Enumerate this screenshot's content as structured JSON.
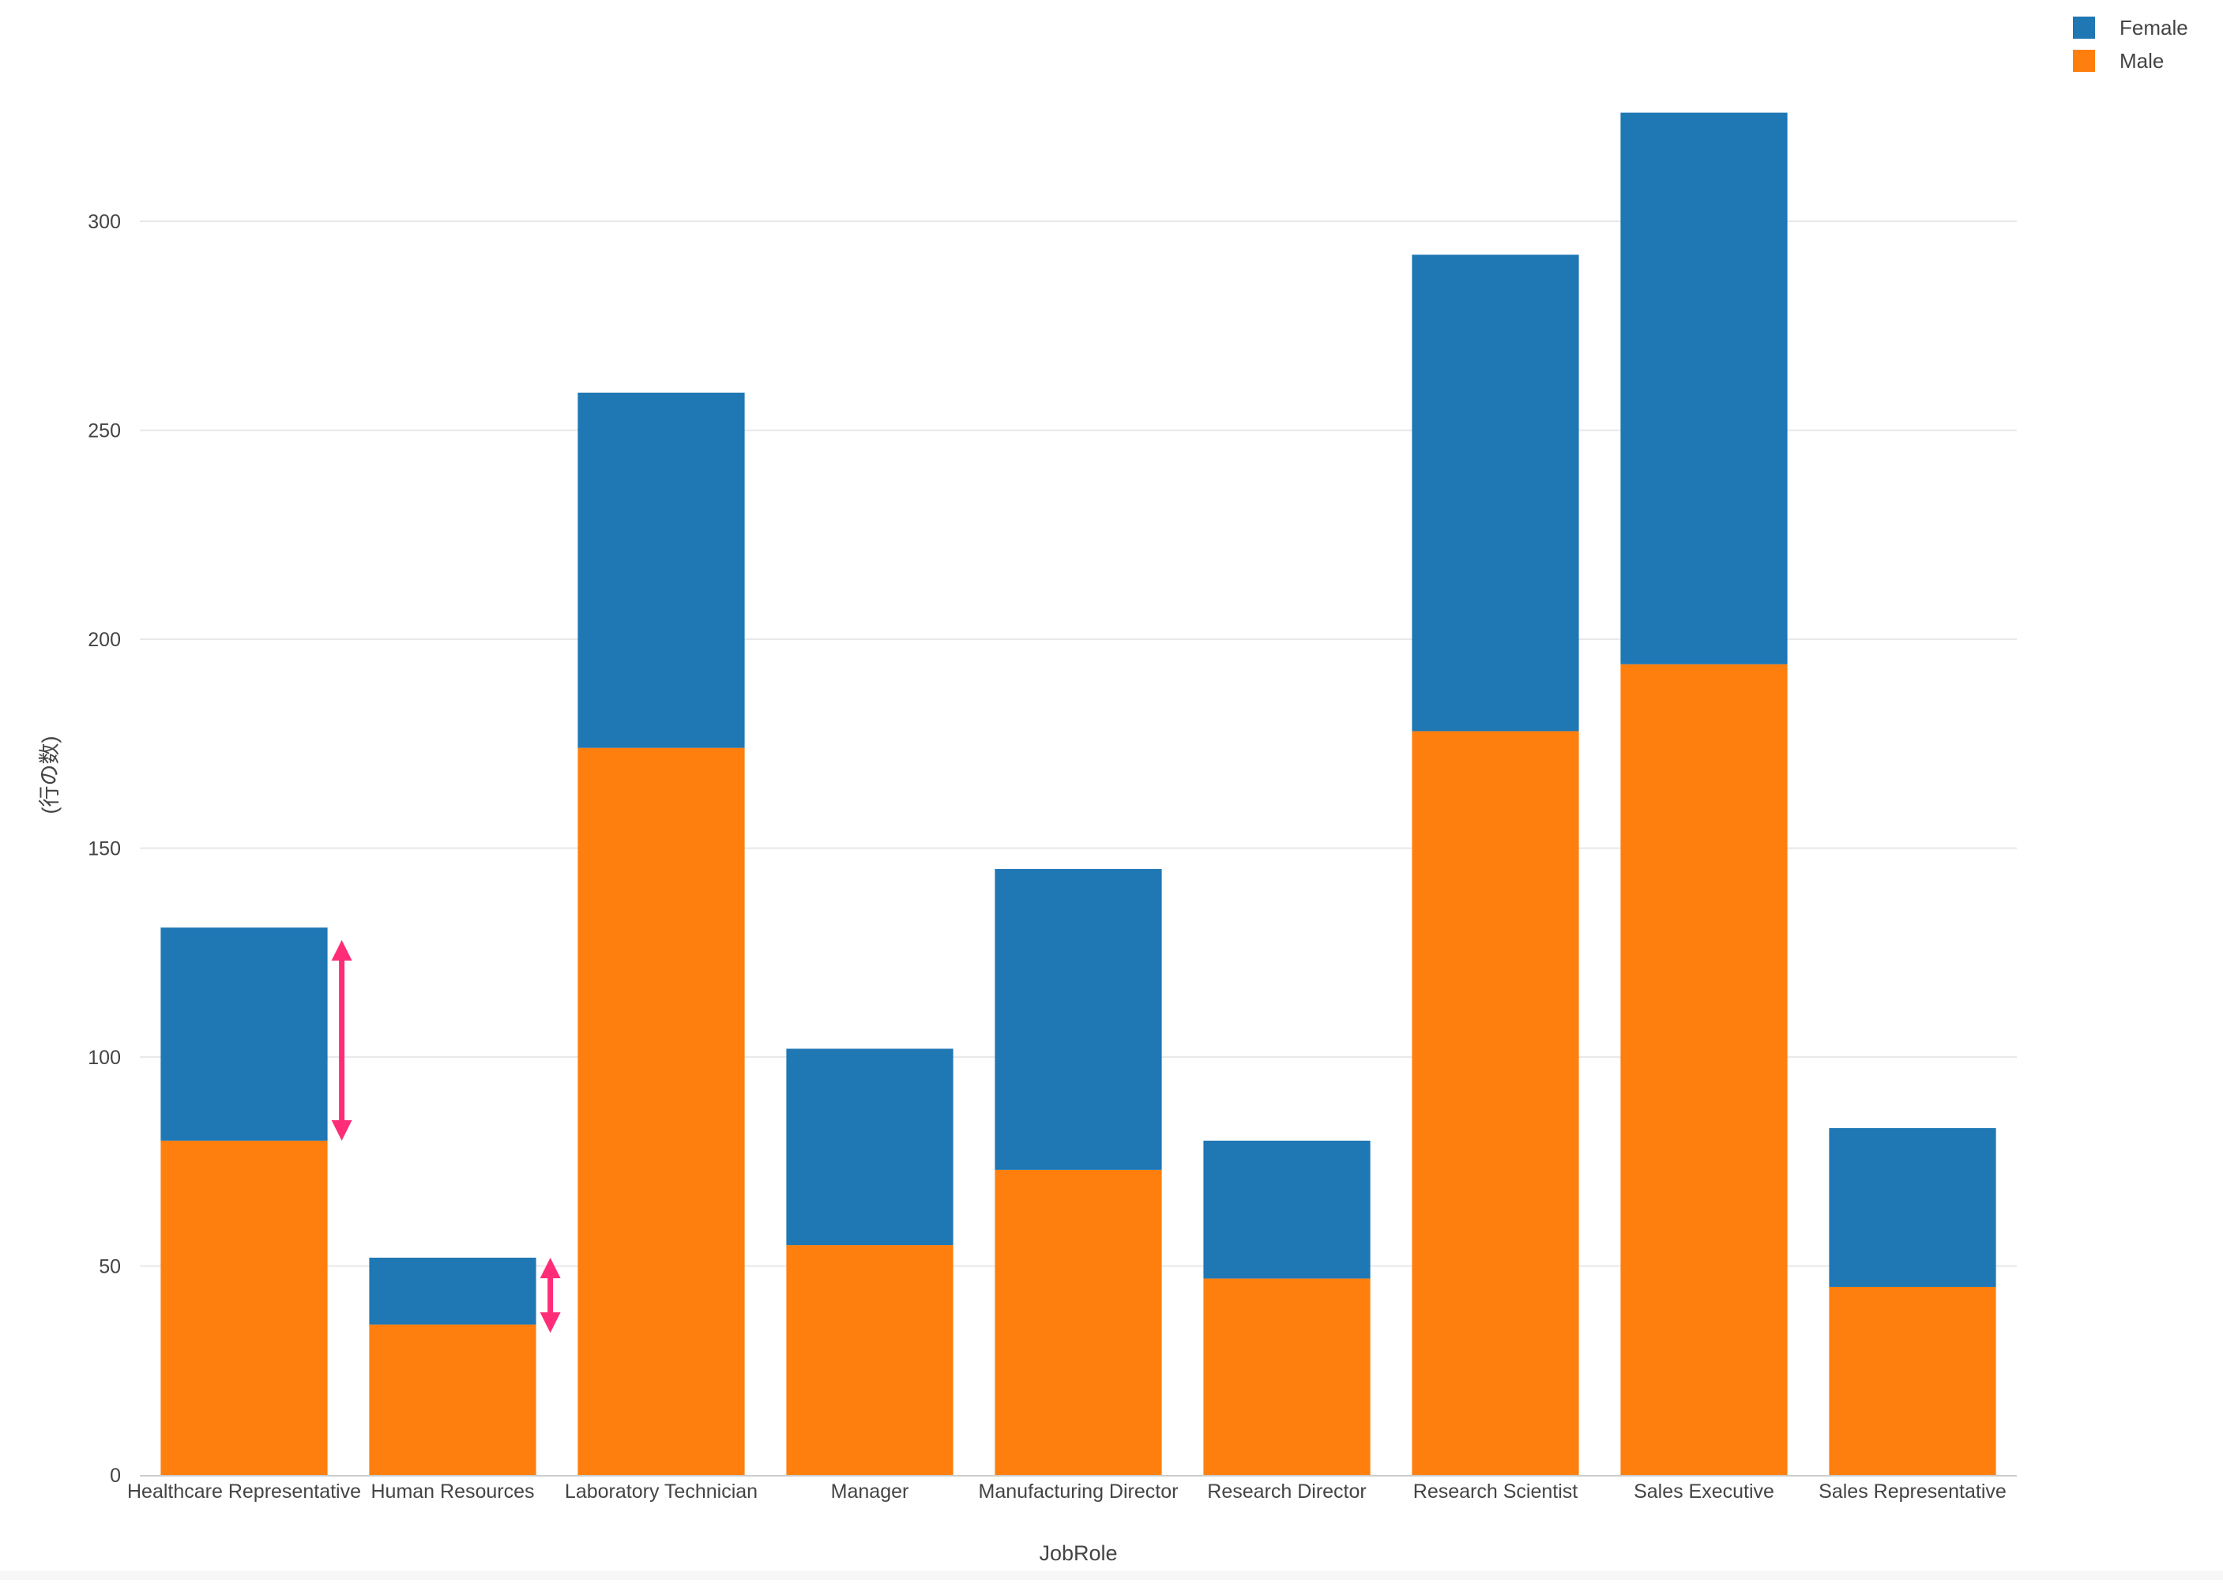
{
  "chart_data": {
    "type": "bar",
    "stacked": true,
    "categories": [
      "Healthcare Representative",
      "Human Resources",
      "Laboratory Technician",
      "Manager",
      "Manufacturing Director",
      "Research Director",
      "Research Scientist",
      "Sales Executive",
      "Sales Representative"
    ],
    "series": [
      {
        "name": "Male",
        "color": "#ff7f0e",
        "values": [
          80,
          36,
          174,
          55,
          73,
          47,
          178,
          194,
          45
        ]
      },
      {
        "name": "Female",
        "color": "#1f77b4",
        "values": [
          51,
          16,
          85,
          47,
          72,
          33,
          114,
          132,
          38
        ]
      }
    ],
    "legend_order": [
      "Female",
      "Male"
    ],
    "xlabel": "JobRole",
    "ylabel": "(行の数)",
    "ylim": [
      0,
      335
    ],
    "yticks": [
      0,
      50,
      100,
      150,
      200,
      250,
      300
    ],
    "grid": true,
    "legend_position": "top-right",
    "annotations": [
      {
        "type": "double-arrow",
        "color": "#ff2d78",
        "category": "Healthcare Representative",
        "from": 80,
        "to": 128
      },
      {
        "type": "double-arrow",
        "color": "#ff2d78",
        "category": "Human Resources",
        "from": 34,
        "to": 52
      }
    ]
  }
}
